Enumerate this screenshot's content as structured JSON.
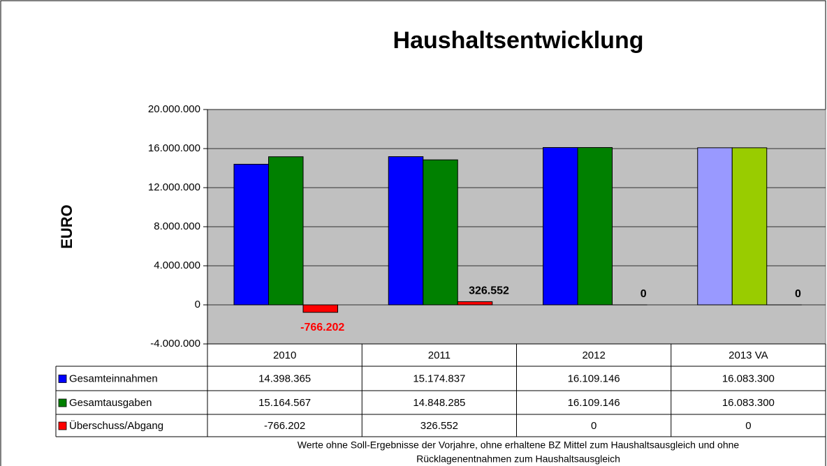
{
  "chart_data": {
    "type": "bar",
    "title": "Haushaltsentwicklung",
    "ylabel": "EURO",
    "categories": [
      "2010",
      "2011",
      "2012",
      "2013 VA"
    ],
    "series": [
      {
        "name": "Gesamteinnahmen",
        "color": "#0000ff",
        "colors": [
          "#0000ff",
          "#0000ff",
          "#0000ff",
          "#9999ff"
        ],
        "values": [
          14398365,
          15174837,
          16109146,
          16083300
        ],
        "value_labels": [
          "14.398.365",
          "15.174.837",
          "16.109.146",
          "16.083.300"
        ]
      },
      {
        "name": "Gesamtausgaben",
        "color": "#008000",
        "colors": [
          "#008000",
          "#008000",
          "#008000",
          "#99cc00"
        ],
        "values": [
          15164567,
          14848285,
          16109146,
          16083300
        ],
        "value_labels": [
          "15.164.567",
          "14.848.285",
          "16.109.146",
          "16.083.300"
        ]
      },
      {
        "name": "Überschuss/Abgang",
        "color": "#ff0000",
        "colors": [
          "#ff0000",
          "#ff0000",
          "#ff0000",
          "#ff0000"
        ],
        "values": [
          -766202,
          326552,
          0,
          0
        ],
        "value_labels": [
          "-766.202",
          "326.552",
          "0",
          "0"
        ],
        "show_data_labels": true
      }
    ],
    "ylim": [
      -4000000,
      20000000
    ],
    "yticks": [
      {
        "value": -4000000,
        "label": "-4.000.000"
      },
      {
        "value": 0,
        "label": "0"
      },
      {
        "value": 4000000,
        "label": "4.000.000"
      },
      {
        "value": 8000000,
        "label": "8.000.000"
      },
      {
        "value": 12000000,
        "label": "12.000.000"
      },
      {
        "value": 16000000,
        "label": "16.000.000"
      },
      {
        "value": 20000000,
        "label": "20.000.000"
      }
    ],
    "grid": true,
    "plot_background": "#c0c0c0",
    "note_lines": [
      "Werte ohne Soll-Ergebnisse der Vorjahre, ohne erhaltene BZ Mittel zum Haushaltsausgleich und ohne",
      "Rücklagenentnahmen zum Haushaltsausgleich"
    ]
  }
}
